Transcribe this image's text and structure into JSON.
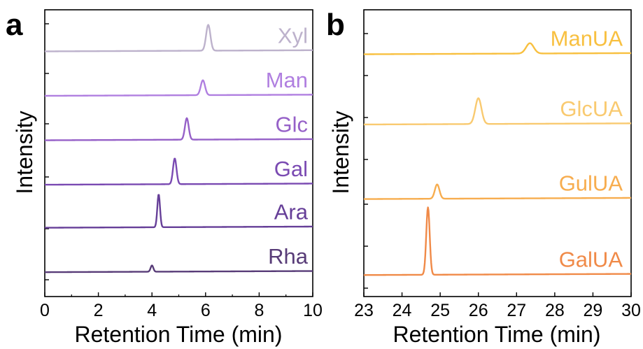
{
  "chart_data": [
    {
      "panel": "a",
      "type": "line",
      "xlabel": "Retention Time (min)",
      "ylabel": "Intensity",
      "xlim": [
        0,
        10
      ],
      "x_ticks": [
        "0",
        "2",
        "4",
        "6",
        "8",
        "10"
      ],
      "stacked_offset": true,
      "series": [
        {
          "name": "Xyl",
          "color": "#bdb2cc",
          "baseline": 0.855,
          "peaks": [
            {
              "x": 6.1,
              "height": 0.09,
              "sigma": 0.08
            }
          ]
        },
        {
          "name": "Man",
          "color": "#b07fe0",
          "baseline": 0.7,
          "peaks": [
            {
              "x": 5.9,
              "height": 0.052,
              "sigma": 0.08
            }
          ]
        },
        {
          "name": "Glc",
          "color": "#9661c8",
          "baseline": 0.545,
          "peaks": [
            {
              "x": 5.3,
              "height": 0.075,
              "sigma": 0.07
            }
          ]
        },
        {
          "name": "Gal",
          "color": "#7a4ab2",
          "baseline": 0.39,
          "peaks": [
            {
              "x": 4.85,
              "height": 0.09,
              "sigma": 0.065
            }
          ]
        },
        {
          "name": "Ara",
          "color": "#663f98",
          "baseline": 0.24,
          "peaks": [
            {
              "x": 4.25,
              "height": 0.115,
              "sigma": 0.05
            }
          ]
        },
        {
          "name": "Rha",
          "color": "#583c78",
          "baseline": 0.085,
          "peaks": [
            {
              "x": 4.0,
              "height": 0.022,
              "sigma": 0.05
            }
          ]
        }
      ]
    },
    {
      "panel": "b",
      "type": "line",
      "xlabel": "Retention Time (min)",
      "ylabel": "Intensity",
      "xlim": [
        23,
        30
      ],
      "x_ticks": [
        "23",
        "24",
        "25",
        "26",
        "27",
        "28",
        "29",
        "30"
      ],
      "stacked_offset": true,
      "series": [
        {
          "name": "ManUA",
          "color": "#f8c040",
          "baseline": 0.845,
          "peaks": [
            {
              "x": 27.35,
              "height": 0.036,
              "sigma": 0.1
            }
          ]
        },
        {
          "name": "GlcUA",
          "color": "#f9ca70",
          "baseline": 0.6,
          "peaks": [
            {
              "x": 26.0,
              "height": 0.09,
              "sigma": 0.08
            }
          ]
        },
        {
          "name": "GulUA",
          "color": "#f7ad4f",
          "baseline": 0.34,
          "peaks": [
            {
              "x": 24.92,
              "height": 0.05,
              "sigma": 0.06
            }
          ]
        },
        {
          "name": "GalUA",
          "color": "#f08a48",
          "baseline": 0.075,
          "peaks": [
            {
              "x": 24.68,
              "height": 0.235,
              "sigma": 0.045
            }
          ]
        }
      ]
    }
  ]
}
